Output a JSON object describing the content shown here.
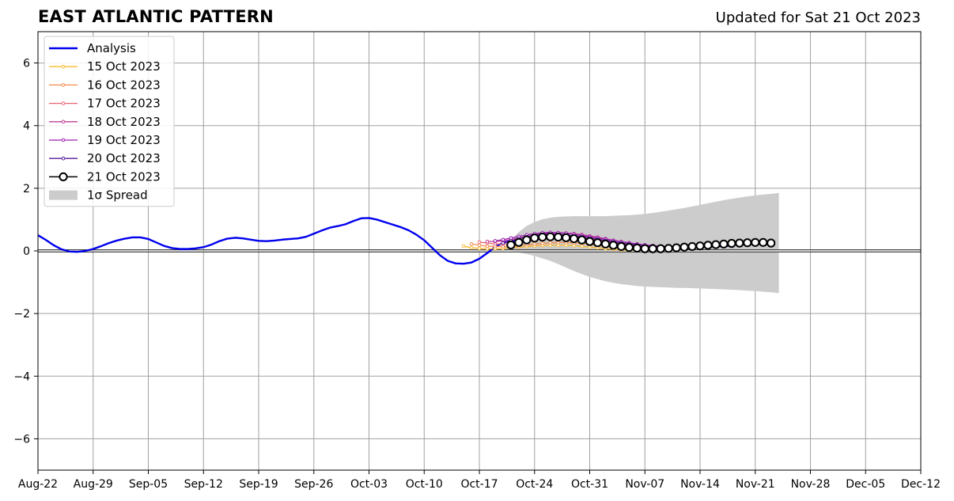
{
  "chart_data": {
    "type": "line",
    "title": "EAST ATLANTIC PATTERN",
    "subtitle": "Updated for Sat 21 Oct 2023",
    "xlabel": "",
    "ylabel": "",
    "xlim": [
      "2023-08-22",
      "2023-12-12"
    ],
    "ylim": [
      -7,
      7
    ],
    "grid": true,
    "legend_position": "top-left",
    "x_ticks": [
      "Aug-22",
      "Aug-29",
      "Sep-05",
      "Sep-12",
      "Sep-19",
      "Sep-26",
      "Oct-03",
      "Oct-10",
      "Oct-17",
      "Oct-24",
      "Oct-31",
      "Nov-07",
      "Nov-14",
      "Nov-21",
      "Nov-28",
      "Dec-05",
      "Dec-12"
    ],
    "y_ticks": [
      6,
      4,
      2,
      0,
      -2,
      -4,
      -6
    ],
    "y_tick_labels": [
      "6",
      "4",
      "2",
      "0",
      "−2",
      "−4",
      "−6"
    ],
    "analysis": {
      "name": "Analysis",
      "color": "#0000ee",
      "start_date": "2023-08-22",
      "values": [
        0.5,
        0.35,
        0.18,
        0.05,
        -0.02,
        -0.03,
        0.0,
        0.06,
        0.15,
        0.25,
        0.33,
        0.39,
        0.43,
        0.43,
        0.38,
        0.27,
        0.16,
        0.09,
        0.06,
        0.06,
        0.08,
        0.12,
        0.2,
        0.31,
        0.39,
        0.42,
        0.4,
        0.36,
        0.32,
        0.31,
        0.33,
        0.36,
        0.38,
        0.4,
        0.45,
        0.55,
        0.65,
        0.74,
        0.79,
        0.85,
        0.95,
        1.04,
        1.05,
        1.0,
        0.92,
        0.84,
        0.76,
        0.66,
        0.52,
        0.34,
        0.1,
        -0.14,
        -0.32,
        -0.4,
        -0.41,
        -0.37,
        -0.25,
        -0.07,
        0.13,
        0.26,
        0.32,
        0.33
      ]
    },
    "series": [
      {
        "name": "15 Oct 2023",
        "color": "#fbb92c",
        "start_date": "2023-10-15",
        "values": [
          0.15,
          0.1,
          0.08,
          0.07,
          0.07,
          0.08,
          0.1,
          0.12,
          0.14,
          0.16,
          0.17,
          0.18,
          0.18,
          0.18,
          0.17,
          0.15,
          0.12,
          0.1,
          0.07,
          0.05,
          0.03,
          0.02,
          0.02,
          0.02,
          0.03,
          0.04,
          0.05,
          0.06,
          0.07,
          0.08
        ]
      },
      {
        "name": "16 Oct 2023",
        "color": "#f38c4b",
        "start_date": "2023-10-16",
        "values": [
          0.22,
          0.18,
          0.15,
          0.14,
          0.14,
          0.15,
          0.17,
          0.2,
          0.22,
          0.24,
          0.26,
          0.27,
          0.27,
          0.26,
          0.24,
          0.21,
          0.18,
          0.15,
          0.12,
          0.09,
          0.07,
          0.06,
          0.05,
          0.05,
          0.06,
          0.07,
          0.08,
          0.09,
          0.1,
          0.11
        ]
      },
      {
        "name": "17 Oct 2023",
        "color": "#e56872",
        "start_date": "2023-10-17",
        "values": [
          0.28,
          0.25,
          0.22,
          0.22,
          0.23,
          0.26,
          0.3,
          0.34,
          0.38,
          0.41,
          0.43,
          0.44,
          0.43,
          0.41,
          0.38,
          0.34,
          0.3,
          0.26,
          0.22,
          0.18,
          0.15,
          0.13,
          0.12,
          0.11,
          0.11,
          0.12,
          0.13,
          0.14,
          0.15,
          0.16
        ]
      },
      {
        "name": "18 Oct 2023",
        "color": "#c13d9a",
        "start_date": "2023-10-18",
        "values": [
          0.3,
          0.3,
          0.32,
          0.36,
          0.41,
          0.46,
          0.51,
          0.55,
          0.57,
          0.58,
          0.57,
          0.55,
          0.52,
          0.48,
          0.44,
          0.39,
          0.34,
          0.3,
          0.26,
          0.22,
          0.19,
          0.17,
          0.15,
          0.14,
          0.14,
          0.14,
          0.15,
          0.16,
          0.17,
          0.18
        ]
      },
      {
        "name": "19 Oct 2023",
        "color": "#9a1fb0",
        "start_date": "2023-10-19",
        "values": [
          0.32,
          0.36,
          0.41,
          0.46,
          0.51,
          0.55,
          0.58,
          0.59,
          0.58,
          0.56,
          0.53,
          0.49,
          0.45,
          0.41,
          0.37,
          0.33,
          0.29,
          0.25,
          0.22,
          0.19,
          0.17,
          0.15,
          0.14,
          0.13,
          0.13,
          0.14,
          0.15,
          0.16,
          0.17,
          0.18
        ]
      },
      {
        "name": "20 Oct 2023",
        "color": "#5a1a9c",
        "start_date": "2023-10-20",
        "values": [
          0.25,
          0.32,
          0.39,
          0.45,
          0.5,
          0.53,
          0.54,
          0.53,
          0.51,
          0.48,
          0.45,
          0.41,
          0.37,
          0.33,
          0.29,
          0.25,
          0.22,
          0.19,
          0.16,
          0.14,
          0.12,
          0.11,
          0.1,
          0.1,
          0.1,
          0.11,
          0.12,
          0.13,
          0.14,
          0.15
        ]
      },
      {
        "name": "21 Oct 2023",
        "color": "#000000",
        "start_date": "2023-10-21",
        "values": [
          0.19,
          0.27,
          0.35,
          0.41,
          0.44,
          0.45,
          0.44,
          0.42,
          0.39,
          0.35,
          0.3,
          0.26,
          0.22,
          0.18,
          0.14,
          0.11,
          0.09,
          0.07,
          0.07,
          0.07,
          0.08,
          0.1,
          0.12,
          0.14,
          0.16,
          0.18,
          0.2,
          0.22,
          0.24,
          0.25,
          0.26,
          0.27,
          0.27,
          0.25
        ]
      }
    ],
    "spread": {
      "name": "1σ Spread",
      "color": "#cccccc",
      "start_date": "2023-10-20",
      "upper": [
        0.05,
        0.35,
        0.6,
        0.8,
        0.92,
        1.01,
        1.06,
        1.09,
        1.1,
        1.11,
        1.11,
        1.11,
        1.11,
        1.11,
        1.12,
        1.13,
        1.14,
        1.16,
        1.18,
        1.21,
        1.25,
        1.29,
        1.33,
        1.37,
        1.42,
        1.47,
        1.52,
        1.57,
        1.62,
        1.66,
        1.7,
        1.74,
        1.77,
        1.8,
        1.82,
        1.85
      ],
      "lower": [
        0.0,
        -0.02,
        -0.05,
        -0.1,
        -0.16,
        -0.24,
        -0.32,
        -0.42,
        -0.53,
        -0.64,
        -0.74,
        -0.83,
        -0.9,
        -0.97,
        -1.02,
        -1.06,
        -1.09,
        -1.12,
        -1.14,
        -1.15,
        -1.16,
        -1.17,
        -1.18,
        -1.18,
        -1.19,
        -1.2,
        -1.21,
        -1.22,
        -1.23,
        -1.24,
        -1.25,
        -1.27,
        -1.28,
        -1.3,
        -1.32,
        -1.35
      ]
    }
  }
}
